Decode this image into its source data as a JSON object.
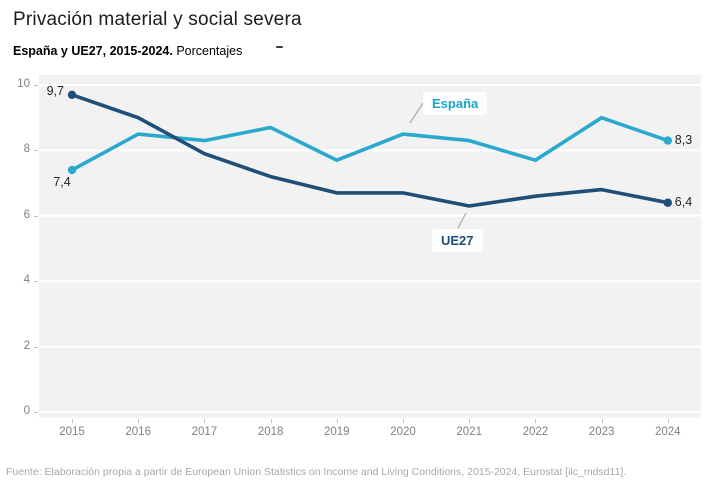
{
  "header": {
    "title": "Privación material y social severa",
    "subtitle_bold": "España y UE27, 2015-2024.",
    "subtitle_regular": "Porcentajes"
  },
  "chart_data": {
    "type": "line",
    "title": "Privación material y social severa",
    "subtitle": "España y UE27, 2015-2024. Porcentajes",
    "categories": [
      "2015",
      "2016",
      "2017",
      "2018",
      "2019",
      "2020",
      "2021",
      "2022",
      "2023",
      "2024"
    ],
    "series": [
      {
        "name": "España",
        "color": "#29a9ce",
        "values": [
          7.4,
          8.5,
          8.3,
          8.7,
          7.7,
          8.5,
          8.3,
          7.7,
          9.0,
          8.3
        ]
      },
      {
        "name": "UE27",
        "color": "#1f4e79",
        "values": [
          9.7,
          9.0,
          7.9,
          7.2,
          6.7,
          6.7,
          6.3,
          6.6,
          6.8,
          6.4
        ]
      }
    ],
    "ylim": [
      0,
      10
    ],
    "ytick_step": 2,
    "yticks": [
      "0",
      "2",
      "4",
      "6",
      "8",
      "10"
    ],
    "grid": "horizontal-white-on-gray",
    "legend_position": "inline-labels",
    "point_labels": [
      {
        "series": 1,
        "index": 0,
        "text": "9,7",
        "position": "left"
      },
      {
        "series": 0,
        "index": 0,
        "text": "7,4",
        "position": "below-left"
      },
      {
        "series": 0,
        "index": 9,
        "text": "8,3",
        "position": "right"
      },
      {
        "series": 1,
        "index": 9,
        "text": "6,4",
        "position": "right"
      }
    ]
  },
  "footer": {
    "source": "Fuente: Elaboración propia a partir de European Union Statistics on Income and Living Conditions, 2015-2024, Eurostat [ilc_mdsd11]."
  },
  "colors": {
    "espana_line": "#29a9ce",
    "ue27_line": "#1f4e79",
    "plot_background": "#f2f2f2",
    "gridline": "#ffffff",
    "axis_text": "#808080",
    "value_label_text": "#262626",
    "source_text": "#a8a8a8"
  }
}
